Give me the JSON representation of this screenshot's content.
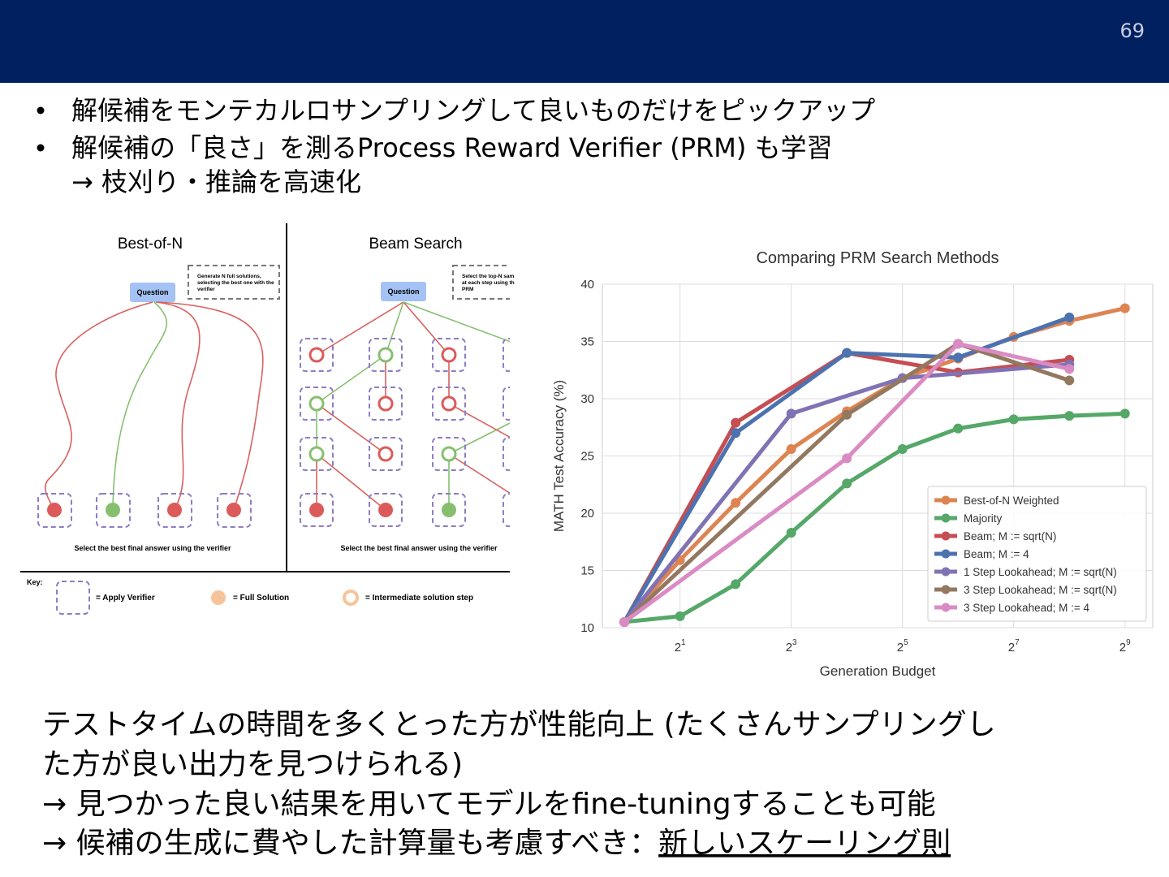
{
  "slide": {
    "page_number": "69",
    "bullets": [
      "解候補をモンテカルロサンプリングして良いものだけをピックアップ",
      "解候補の「良さ」を測るProcess Reward Verifier (PRM) も学習"
    ],
    "bullet_continuation": "→ 枝刈り・推論を高速化",
    "summary_lines": [
      "テストタイムの時間を多くとった方が性能向上 (たくさんサンプリングし",
      "た方が良い出力を見つけられる)",
      "→ 見つかった良い結果を用いてモデルをfine-tuningすることも可能"
    ],
    "summary_last": "→ 候補の生成に費やした計算量も考慮すべき：",
    "summary_emphasis": "新しいスケーリング則"
  },
  "diagram": {
    "panels": [
      {
        "title": "Best-of-N",
        "node": "Question",
        "note": [
          "Generate N full solutions,",
          "selecting the best one with the",
          "verifier"
        ],
        "caption": "Select the best final answer using the verifier"
      },
      {
        "title": "Beam Search",
        "node": "Question",
        "note": [
          "Select the top-N sam",
          "at each step using th",
          "PRM"
        ],
        "caption": "Select the best final answer using the verifier"
      }
    ],
    "key": {
      "title": "Key:",
      "items": [
        "= Apply Verifier",
        "= Full Solution",
        "= Intermediate solution step"
      ]
    }
  },
  "chart_data": {
    "type": "line",
    "title": "Comparing PRM Search Methods",
    "x_label": "Generation Budget",
    "y_label": "MATH Test Accuracy (%)",
    "xscale": "log2",
    "xlim": [
      0.76,
      724
    ],
    "xticks": [
      {
        "value": 2,
        "label": "2^1"
      },
      {
        "value": 8,
        "label": "2^3"
      },
      {
        "value": 32,
        "label": "2^5"
      },
      {
        "value": 128,
        "label": "2^7"
      },
      {
        "value": 512,
        "label": "2^9"
      }
    ],
    "ylim": [
      10,
      40
    ],
    "yticks": [
      10,
      15,
      20,
      25,
      30,
      35,
      40
    ],
    "grid": true,
    "legend": "lower right",
    "series": [
      {
        "name": "Best-of-N Weighted",
        "color": "#dd8452",
        "x": [
          1,
          2,
          4,
          8,
          16,
          32,
          64,
          128,
          256,
          512
        ],
        "values": [
          10.5,
          15.9,
          20.9,
          25.6,
          28.9,
          31.8,
          33.5,
          35.4,
          36.8,
          37.9
        ]
      },
      {
        "name": "Majority",
        "color": "#55a868",
        "x": [
          1,
          2,
          4,
          8,
          16,
          32,
          64,
          128,
          256,
          512
        ],
        "values": [
          10.5,
          11.0,
          13.8,
          18.3,
          22.6,
          25.6,
          27.4,
          28.2,
          28.5,
          28.7
        ]
      },
      {
        "name": "Beam; M := sqrt(N)",
        "color": "#c44e52",
        "x": [
          1,
          4,
          16,
          64,
          256
        ],
        "values": [
          10.5,
          27.9,
          34.0,
          32.3,
          33.4
        ]
      },
      {
        "name": "Beam; M := 4",
        "color": "#4c72b0",
        "x": [
          1,
          4,
          16,
          64,
          256
        ],
        "values": [
          10.5,
          27.0,
          34.0,
          33.6,
          37.1
        ]
      },
      {
        "name": "1 Step Lookahead; M := sqrt(N)",
        "color": "#8172b3",
        "x": [
          1,
          8,
          32,
          256
        ],
        "values": [
          10.5,
          28.7,
          31.8,
          33.0
        ]
      },
      {
        "name": "3 Step Lookahead; M := sqrt(N)",
        "color": "#937860",
        "x": [
          1,
          16,
          64,
          256
        ],
        "values": [
          10.5,
          28.6,
          34.8,
          31.6
        ]
      },
      {
        "name": "3 Step Lookahead; M := 4",
        "color": "#da8bc3",
        "x": [
          1,
          16,
          64,
          256
        ],
        "values": [
          10.5,
          24.8,
          34.8,
          32.6
        ]
      }
    ]
  }
}
